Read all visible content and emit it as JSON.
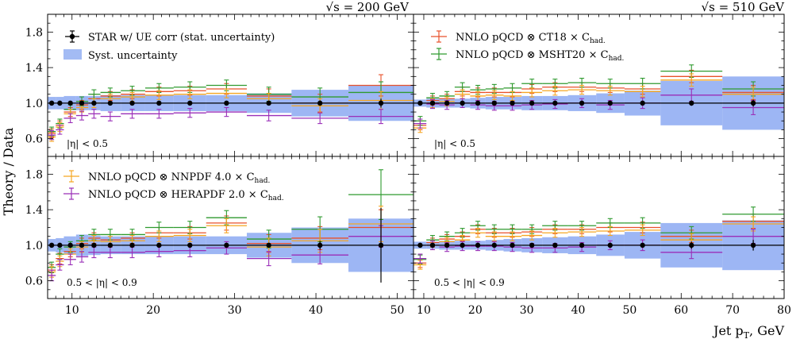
{
  "figure": {
    "y_label": "Theory / Data",
    "x_label": "Jet p",
    "x_label_sub": "T",
    "x_label_unit": ", GeV"
  },
  "colors": {
    "star": "#000000",
    "syst": "#7c9ef0",
    "ct18": "#e8512a",
    "msht20": "#2f9a2f",
    "nnpdf": "#f5a623",
    "herapdf": "#9a2fb8"
  },
  "legend": {
    "star": "STAR w/ UE corr (stat. uncertainty)",
    "syst": "Syst. uncertainty",
    "ct18": "NNLO pQCD ⊗ CT18 × C",
    "msht20": "NNLO pQCD ⊗ MSHT20 × C",
    "nnpdf": "NNLO pQCD ⊗ NNPDF 4.0 × C",
    "herapdf": "NNLO pQCD ⊗ HERAPDF 2.0 × C",
    "had_sub": "had."
  },
  "chart_data": [
    {
      "type": "scatter",
      "panel": "top-left",
      "energy_label": "√s = 200 GeV",
      "eta_label": "|η| < 0.5",
      "xlim": [
        7,
        52
      ],
      "ylim": [
        0.4,
        2.0
      ],
      "x_ticks": [
        10,
        20,
        30,
        40,
        50
      ],
      "y_ticks": [
        0.6,
        1.0,
        1.4,
        1.8
      ],
      "bins": [
        [
          7,
          8
        ],
        [
          8,
          9
        ],
        [
          9,
          10.5
        ],
        [
          10.5,
          12
        ],
        [
          12,
          13.5
        ],
        [
          13.5,
          16
        ],
        [
          16,
          19
        ],
        [
          19,
          22.5
        ],
        [
          22.5,
          26.5
        ],
        [
          26.5,
          31.5
        ],
        [
          31.5,
          37
        ],
        [
          37,
          44
        ],
        [
          44,
          52
        ]
      ],
      "x": [
        7.5,
        8.5,
        9.8,
        11.2,
        12.7,
        14.7,
        17.4,
        20.7,
        24.5,
        29.0,
        34.2,
        40.5,
        48.0
      ],
      "data_stat": [
        0.01,
        0.01,
        0.01,
        0.01,
        0.01,
        0.01,
        0.01,
        0.01,
        0.01,
        0.01,
        0.02,
        0.03,
        0.05
      ],
      "syst": [
        0.07,
        0.07,
        0.08,
        0.08,
        0.08,
        0.09,
        0.09,
        0.09,
        0.09,
        0.09,
        0.11,
        0.15,
        0.2
      ],
      "series": [
        {
          "name": "CT18",
          "values": [
            0.66,
            0.75,
            0.9,
            0.98,
            1.05,
            1.08,
            1.1,
            1.13,
            1.14,
            1.16,
            1.08,
            1.0,
            1.2
          ],
          "err": [
            0.05,
            0.05,
            0.05,
            0.05,
            0.05,
            0.05,
            0.05,
            0.05,
            0.05,
            0.06,
            0.08,
            0.1,
            0.12
          ]
        },
        {
          "name": "MSHT20",
          "values": [
            0.68,
            0.77,
            0.93,
            1.02,
            1.1,
            1.12,
            1.14,
            1.17,
            1.18,
            1.2,
            1.1,
            1.07,
            1.12
          ],
          "err": [
            0.05,
            0.05,
            0.05,
            0.05,
            0.05,
            0.05,
            0.05,
            0.05,
            0.06,
            0.06,
            0.08,
            0.1,
            0.12
          ]
        },
        {
          "name": "NNPDF 4.0",
          "values": [
            0.62,
            0.73,
            0.88,
            0.95,
            1.0,
            1.05,
            1.07,
            1.09,
            1.1,
            1.11,
            1.05,
            0.97,
            1.03
          ],
          "err": [
            0.05,
            0.05,
            0.05,
            0.05,
            0.05,
            0.05,
            0.05,
            0.05,
            0.05,
            0.05,
            0.06,
            0.08,
            0.1
          ]
        },
        {
          "name": "HERAPDF 2.0",
          "values": [
            0.64,
            0.7,
            0.83,
            0.86,
            0.88,
            0.85,
            0.88,
            0.88,
            0.89,
            0.9,
            0.86,
            0.83,
            0.85
          ],
          "err": [
            0.05,
            0.05,
            0.05,
            0.05,
            0.05,
            0.05,
            0.05,
            0.05,
            0.05,
            0.05,
            0.06,
            0.06,
            0.08
          ]
        }
      ]
    },
    {
      "type": "scatter",
      "panel": "top-right",
      "energy_label": "√s = 510 GeV",
      "eta_label": "|η| < 0.5",
      "xlim": [
        8,
        80
      ],
      "ylim": [
        0.4,
        2.0
      ],
      "x_ticks": [
        10,
        20,
        30,
        40,
        50,
        60,
        70,
        80
      ],
      "y_ticks": [
        0.6,
        1.0,
        1.4,
        1.8
      ],
      "bins": [
        [
          8,
          10.5
        ],
        [
          10.5,
          13
        ],
        [
          13,
          16
        ],
        [
          16,
          19
        ],
        [
          19,
          22
        ],
        [
          22,
          25.5
        ],
        [
          25.5,
          29
        ],
        [
          29,
          33
        ],
        [
          33,
          38
        ],
        [
          38,
          43.5
        ],
        [
          43.5,
          49
        ],
        [
          49,
          56
        ],
        [
          56,
          68
        ],
        [
          68,
          80
        ]
      ],
      "x": [
        9.3,
        11.7,
        14.5,
        17.5,
        20.5,
        23.7,
        27.2,
        31.0,
        35.5,
        40.7,
        46.2,
        52.5,
        62.0,
        74.0
      ],
      "data_stat": [
        0.01,
        0.01,
        0.01,
        0.01,
        0.01,
        0.01,
        0.01,
        0.01,
        0.01,
        0.01,
        0.01,
        0.02,
        0.03,
        0.04
      ],
      "syst": [
        0.04,
        0.05,
        0.05,
        0.05,
        0.06,
        0.07,
        0.07,
        0.08,
        0.08,
        0.09,
        0.11,
        0.14,
        0.25,
        0.3
      ],
      "series": [
        {
          "name": "CT18",
          "values": [
            0.75,
            1.03,
            1.05,
            1.13,
            1.12,
            1.12,
            1.12,
            1.16,
            1.18,
            1.18,
            1.17,
            1.16,
            1.3,
            1.12
          ],
          "err": [
            0.05,
            0.05,
            0.05,
            0.05,
            0.05,
            0.05,
            0.05,
            0.05,
            0.05,
            0.05,
            0.05,
            0.06,
            0.07,
            0.08
          ]
        },
        {
          "name": "MSHT20",
          "values": [
            0.8,
            1.06,
            1.08,
            1.18,
            1.15,
            1.16,
            1.17,
            1.22,
            1.22,
            1.23,
            1.22,
            1.22,
            1.36,
            1.16
          ],
          "err": [
            0.05,
            0.05,
            0.05,
            0.05,
            0.05,
            0.05,
            0.05,
            0.05,
            0.05,
            0.05,
            0.05,
            0.06,
            0.07,
            0.08
          ]
        },
        {
          "name": "NNPDF 4.0",
          "values": [
            0.72,
            1.0,
            1.02,
            1.1,
            1.08,
            1.09,
            1.08,
            1.12,
            1.14,
            1.15,
            1.14,
            1.13,
            1.26,
            1.1
          ],
          "err": [
            0.05,
            0.05,
            0.05,
            0.05,
            0.05,
            0.05,
            0.05,
            0.05,
            0.05,
            0.05,
            0.05,
            0.06,
            0.07,
            0.08
          ]
        },
        {
          "name": "HERAPDF 2.0",
          "values": [
            0.77,
            0.99,
            0.98,
            1.0,
            0.98,
            0.97,
            0.97,
            0.98,
            0.99,
            1.0,
            0.98,
            1.0,
            1.09,
            0.95
          ],
          "err": [
            0.05,
            0.05,
            0.05,
            0.05,
            0.05,
            0.05,
            0.05,
            0.05,
            0.05,
            0.05,
            0.05,
            0.06,
            0.07,
            0.08
          ]
        }
      ]
    },
    {
      "type": "scatter",
      "panel": "bottom-left",
      "eta_label": "0.5 < |η| < 0.9",
      "xlim": [
        7,
        52
      ],
      "ylim": [
        0.4,
        2.0
      ],
      "x_ticks": [
        10,
        20,
        30,
        40,
        50
      ],
      "y_ticks": [
        0.6,
        1.0,
        1.4,
        1.8
      ],
      "bins": [
        [
          7,
          8
        ],
        [
          8,
          9
        ],
        [
          9,
          10.5
        ],
        [
          10.5,
          12
        ],
        [
          12,
          13.5
        ],
        [
          13.5,
          16
        ],
        [
          16,
          19
        ],
        [
          19,
          22.5
        ],
        [
          22.5,
          26.5
        ],
        [
          26.5,
          31.5
        ],
        [
          31.5,
          37
        ],
        [
          37,
          44
        ],
        [
          44,
          52
        ]
      ],
      "x": [
        7.5,
        8.5,
        9.8,
        11.2,
        12.7,
        14.7,
        17.4,
        20.7,
        24.5,
        29.0,
        34.2,
        40.5,
        48.0
      ],
      "data_stat": [
        0.01,
        0.01,
        0.01,
        0.01,
        0.01,
        0.01,
        0.01,
        0.01,
        0.01,
        0.01,
        0.02,
        0.05,
        0.42
      ],
      "syst": [
        0.07,
        0.08,
        0.1,
        0.12,
        0.11,
        0.1,
        0.1,
        0.1,
        0.1,
        0.1,
        0.14,
        0.2,
        0.3
      ],
      "series": [
        {
          "name": "CT18",
          "values": [
            0.72,
            0.85,
            0.93,
            1.02,
            1.08,
            1.06,
            1.08,
            1.14,
            1.14,
            1.25,
            1.02,
            1.08,
            1.2
          ],
          "err": [
            0.06,
            0.06,
            0.06,
            0.06,
            0.06,
            0.06,
            0.06,
            0.06,
            0.07,
            0.08,
            0.1,
            0.13,
            0.2
          ]
        },
        {
          "name": "MSHT20",
          "values": [
            0.75,
            0.9,
            0.98,
            1.05,
            1.12,
            1.12,
            1.12,
            1.2,
            1.2,
            1.31,
            1.07,
            1.18,
            1.57
          ],
          "err": [
            0.06,
            0.06,
            0.06,
            0.06,
            0.06,
            0.06,
            0.06,
            0.06,
            0.07,
            0.08,
            0.1,
            0.14,
            0.28
          ]
        },
        {
          "name": "NNPDF 4.0",
          "values": [
            0.7,
            0.82,
            0.9,
            0.98,
            1.05,
            1.04,
            1.05,
            1.1,
            1.11,
            1.22,
            0.98,
            1.05,
            1.24
          ],
          "err": [
            0.06,
            0.06,
            0.06,
            0.06,
            0.06,
            0.06,
            0.06,
            0.06,
            0.07,
            0.08,
            0.1,
            0.13,
            0.2
          ]
        },
        {
          "name": "HERAPDF 2.0",
          "values": [
            0.66,
            0.78,
            0.84,
            0.87,
            0.92,
            0.92,
            0.92,
            0.93,
            0.94,
            0.97,
            0.85,
            0.89,
            1.1
          ],
          "err": [
            0.06,
            0.06,
            0.06,
            0.06,
            0.06,
            0.06,
            0.06,
            0.06,
            0.07,
            0.07,
            0.08,
            0.1,
            0.12
          ]
        }
      ]
    },
    {
      "type": "scatter",
      "panel": "bottom-right",
      "eta_label": "0.5 < |η| < 0.9",
      "xlim": [
        8,
        80
      ],
      "ylim": [
        0.4,
        2.0
      ],
      "x_ticks": [
        10,
        20,
        30,
        40,
        50,
        60,
        70,
        80
      ],
      "y_ticks": [
        0.6,
        1.0,
        1.4,
        1.8
      ],
      "bins": [
        [
          8,
          10.5
        ],
        [
          10.5,
          13
        ],
        [
          13,
          16
        ],
        [
          16,
          19
        ],
        [
          19,
          22
        ],
        [
          22,
          25.5
        ],
        [
          25.5,
          29
        ],
        [
          29,
          33
        ],
        [
          33,
          38
        ],
        [
          38,
          43.5
        ],
        [
          43.5,
          49
        ],
        [
          49,
          56
        ],
        [
          56,
          68
        ],
        [
          68,
          80
        ]
      ],
      "x": [
        9.3,
        11.7,
        14.5,
        17.5,
        20.5,
        23.7,
        27.2,
        31.0,
        35.5,
        40.7,
        46.2,
        52.5,
        62.0,
        74.0
      ],
      "data_stat": [
        0.01,
        0.01,
        0.01,
        0.01,
        0.01,
        0.01,
        0.01,
        0.01,
        0.01,
        0.01,
        0.01,
        0.02,
        0.04,
        0.06
      ],
      "syst": [
        0.04,
        0.04,
        0.05,
        0.05,
        0.05,
        0.06,
        0.07,
        0.08,
        0.09,
        0.1,
        0.12,
        0.15,
        0.25,
        0.28
      ],
      "series": [
        {
          "name": "CT18",
          "values": [
            0.8,
            1.03,
            1.07,
            1.1,
            1.18,
            1.14,
            1.14,
            1.15,
            1.18,
            1.18,
            1.2,
            1.2,
            1.1,
            1.27
          ],
          "err": [
            0.05,
            0.05,
            0.05,
            0.05,
            0.05,
            0.05,
            0.05,
            0.05,
            0.05,
            0.05,
            0.05,
            0.06,
            0.07,
            0.08
          ]
        },
        {
          "name": "MSHT20",
          "values": [
            0.84,
            1.06,
            1.1,
            1.14,
            1.22,
            1.18,
            1.18,
            1.18,
            1.22,
            1.22,
            1.25,
            1.25,
            1.14,
            1.35
          ],
          "err": [
            0.05,
            0.05,
            0.05,
            0.05,
            0.05,
            0.05,
            0.05,
            0.05,
            0.05,
            0.05,
            0.05,
            0.06,
            0.07,
            0.08
          ]
        },
        {
          "name": "NNPDF 4.0",
          "values": [
            0.78,
            1.0,
            1.04,
            1.06,
            1.14,
            1.1,
            1.1,
            1.11,
            1.14,
            1.15,
            1.16,
            1.17,
            1.06,
            1.24
          ],
          "err": [
            0.05,
            0.05,
            0.05,
            0.05,
            0.05,
            0.05,
            0.05,
            0.05,
            0.05,
            0.05,
            0.05,
            0.06,
            0.07,
            0.08
          ]
        },
        {
          "name": "HERAPDF 2.0",
          "values": [
            0.85,
            1.0,
            0.98,
            0.99,
            0.99,
            0.99,
            0.98,
            0.97,
            0.97,
            0.98,
            1.0,
            1.0,
            0.92,
            1.1
          ],
          "err": [
            0.05,
            0.05,
            0.05,
            0.05,
            0.05,
            0.05,
            0.05,
            0.05,
            0.05,
            0.05,
            0.05,
            0.06,
            0.07,
            0.08
          ]
        }
      ]
    }
  ]
}
